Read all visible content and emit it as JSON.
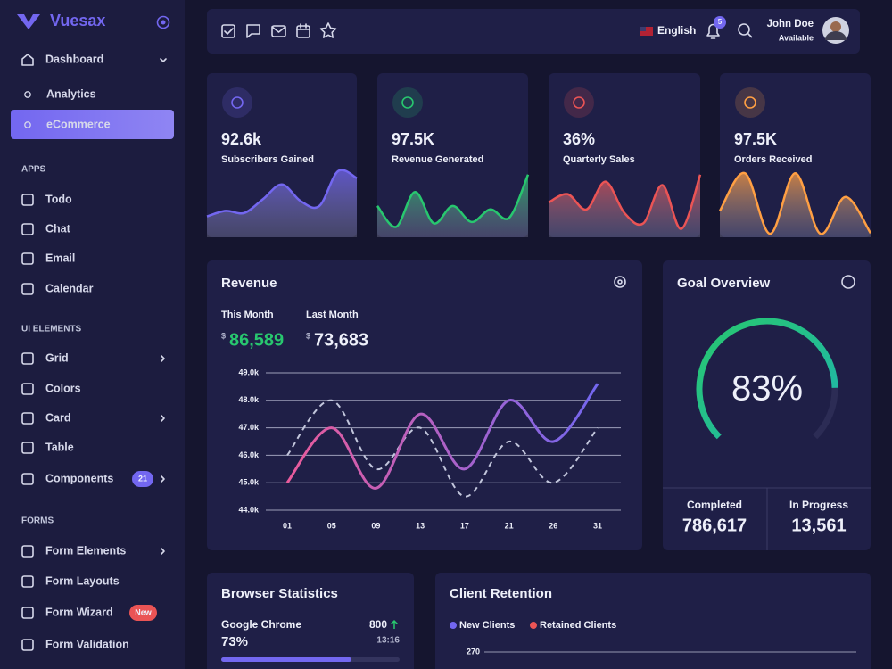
{
  "sidebar": {
    "brand": "Vuesax",
    "nav": [
      {
        "label": "Dashboard"
      },
      {
        "label": "Analytics"
      },
      {
        "label": "eCommerce"
      }
    ],
    "sections": [
      {
        "title": "APPS",
        "items": [
          {
            "label": "Todo"
          },
          {
            "label": "Chat"
          },
          {
            "label": "Email"
          },
          {
            "label": "Calendar"
          }
        ]
      },
      {
        "title": "UI ELEMENTS",
        "items": [
          {
            "label": "Grid"
          },
          {
            "label": "Colors"
          },
          {
            "label": "Card"
          },
          {
            "label": "Table"
          },
          {
            "label": "Components",
            "badge": "21",
            "badge_color": "#7367f0"
          }
        ]
      },
      {
        "title": "FORMS",
        "items": [
          {
            "label": "Form Elements"
          },
          {
            "label": "Form Layouts"
          },
          {
            "label": "Form Wizard",
            "badge": "New",
            "badge_color": "#ea5455"
          },
          {
            "label": "Form Validation"
          }
        ]
      }
    ]
  },
  "header": {
    "language": "English",
    "notifications": "5",
    "user": {
      "name": "John Doe",
      "status": "Available"
    }
  },
  "stats": [
    {
      "value": "92.6k",
      "label": "Subscribers Gained",
      "color": "#7367f0",
      "sparkline": {
        "type": "area",
        "ylim": [
          0,
          100
        ],
        "values": [
          30,
          38,
          35,
          55,
          76,
          52,
          45,
          95,
          85
        ]
      }
    },
    {
      "value": "97.5K",
      "label": "Revenue Generated",
      "color": "#28c76f",
      "sparkline": {
        "type": "area",
        "ylim": [
          0,
          100
        ],
        "values": [
          45,
          15,
          65,
          20,
          45,
          22,
          40,
          28,
          90
        ]
      }
    },
    {
      "value": "36%",
      "label": "Quarterly Sales",
      "color": "#ea5455",
      "sparkline": {
        "type": "area",
        "ylim": [
          0,
          100
        ],
        "values": [
          50,
          62,
          40,
          80,
          35,
          20,
          75,
          12,
          90
        ]
      }
    },
    {
      "value": "97.5K",
      "label": "Orders Received",
      "color": "#ff9f43",
      "sparkline": {
        "type": "area",
        "ylim": [
          0,
          100
        ],
        "values": [
          38,
          92,
          5,
          92,
          5,
          58,
          6
        ]
      }
    }
  ],
  "revenue": {
    "title": "Revenue",
    "this_month": {
      "label": "This Month",
      "currency": "$",
      "value": "86,589",
      "color": "#28c76f"
    },
    "last_month": {
      "label": "Last Month",
      "currency": "$",
      "value": "73,683"
    },
    "chart": {
      "type": "line",
      "categories": [
        "01",
        "05",
        "09",
        "13",
        "17",
        "21",
        "26",
        "31"
      ],
      "ylim": [
        44000,
        49000
      ],
      "yticks": [
        {
          "value": 44000,
          "label": "44.0k"
        },
        {
          "value": 45000,
          "label": "45.0k"
        },
        {
          "value": 46000,
          "label": "46.0k"
        },
        {
          "value": 47000,
          "label": "47.0k"
        },
        {
          "value": 48000,
          "label": "48.0k"
        },
        {
          "value": 49000,
          "label": "49.0k"
        }
      ],
      "grid": true,
      "series": [
        {
          "color": "#7367f0",
          "gradient_start": "#ea5b9b",
          "values": [
            45000,
            47000,
            44800,
            47500,
            45500,
            48000,
            46500,
            48600
          ]
        },
        {
          "color": "#c2c6dc",
          "dashed": true,
          "values": [
            46000,
            48000,
            45500,
            47000,
            44500,
            46500,
            45000,
            47000
          ]
        }
      ]
    }
  },
  "goal": {
    "title": "Goal Overview",
    "value": 83,
    "value_label": "83%",
    "max": 100,
    "color": "#28c76f",
    "gradient_end": "#1fb5ad",
    "completed": {
      "label": "Completed",
      "value": "786,617"
    },
    "in_progress": {
      "label": "In Progress",
      "value": "13,561"
    }
  },
  "browser": {
    "title": "Browser Statistics",
    "items": [
      {
        "name": "Google Chrome",
        "count": "800",
        "percent": 73,
        "percent_label": "73%",
        "time": "13:16"
      }
    ]
  },
  "retention": {
    "title": "Client Retention",
    "series": [
      {
        "name": "New Clients",
        "color": "#7367f0"
      },
      {
        "name": "Retained Clients",
        "color": "#ea5455"
      }
    ],
    "yticks": [
      270
    ]
  }
}
